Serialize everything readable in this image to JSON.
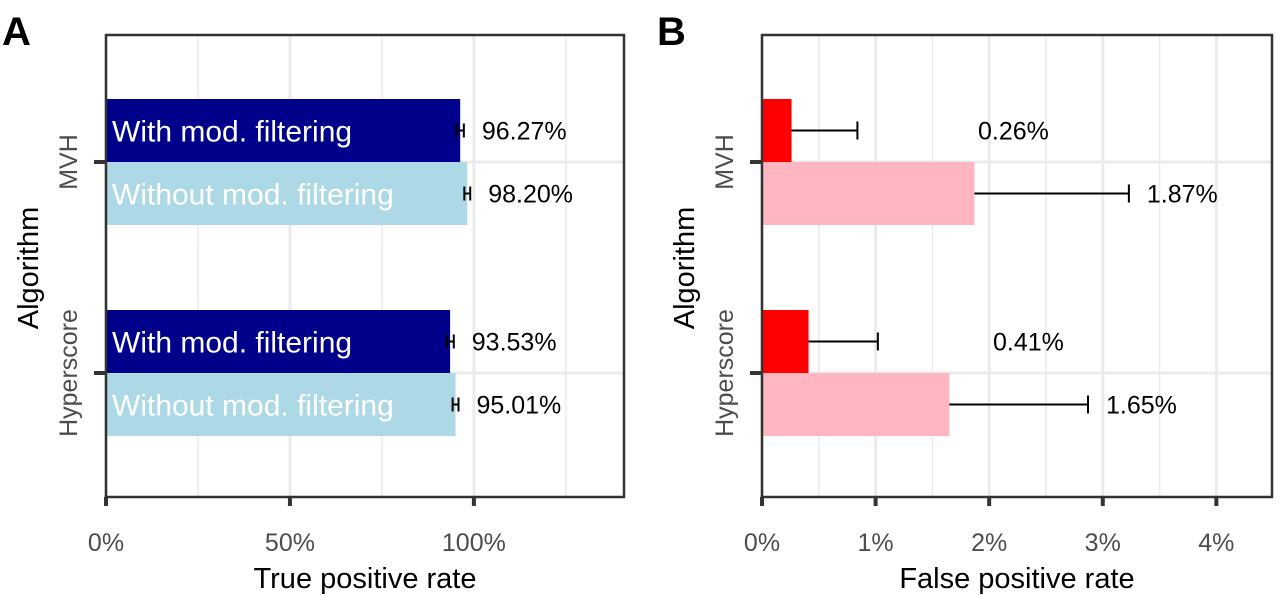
{
  "chart_data": [
    {
      "id": "A",
      "type": "bar",
      "orientation": "horizontal",
      "panel_label": "A",
      "title": "",
      "xlabel": "True positive rate",
      "ylabel": "Algorithm",
      "xlim": [
        0,
        140.8
      ],
      "x_ticks": [
        0,
        50,
        100
      ],
      "x_tick_labels": [
        "0%",
        "50%",
        "100%"
      ],
      "minor_gridlines": [
        25,
        75,
        125
      ],
      "grid": true,
      "categories": [
        "MVH",
        "Hyperscore"
      ],
      "series": [
        {
          "name": "With mod. filtering",
          "color": "#00008B",
          "values": [
            96.27,
            93.53
          ],
          "error": [
            1.0,
            1.0
          ],
          "labels": [
            "96.27%",
            "93.53%"
          ],
          "in_bar_label": "With mod. filtering"
        },
        {
          "name": "Without mod. filtering",
          "color": "#ADD8E6",
          "values": [
            98.2,
            95.01
          ],
          "error": [
            0.8,
            0.8
          ],
          "labels": [
            "98.20%",
            "95.01%"
          ],
          "in_bar_label": "Without mod. filtering"
        }
      ]
    },
    {
      "id": "B",
      "type": "bar",
      "orientation": "horizontal",
      "panel_label": "B",
      "title": "",
      "xlabel": "False positive rate",
      "ylabel": "Algorithm",
      "xlim": [
        0,
        4.49
      ],
      "x_ticks": [
        0,
        1,
        2,
        3,
        4
      ],
      "x_tick_labels": [
        "0%",
        "1%",
        "2%",
        "3%",
        "4%"
      ],
      "minor_gridlines": [
        0.5,
        1.5,
        2.5,
        3.5
      ],
      "grid": true,
      "categories": [
        "MVH",
        "Hyperscore"
      ],
      "series": [
        {
          "name": "With mod. filtering",
          "color": "#FF0000",
          "values": [
            0.26,
            0.41
          ],
          "error": [
            0.58,
            0.61
          ],
          "labels": [
            "0.26%",
            "0.41%"
          ]
        },
        {
          "name": "Without mod. filtering",
          "color": "#FFB6C1",
          "values": [
            1.87,
            1.65
          ],
          "error": [
            1.36,
            1.22
          ],
          "labels": [
            "1.87%",
            "1.65%"
          ]
        }
      ]
    }
  ]
}
